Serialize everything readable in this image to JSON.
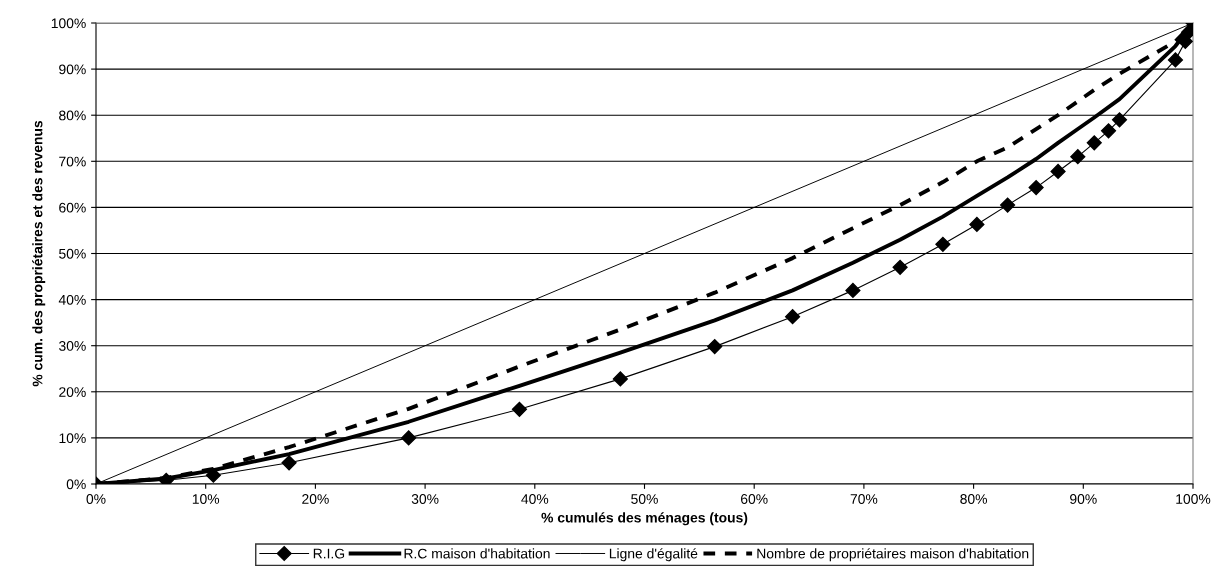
{
  "chart_data": {
    "type": "line",
    "xlabel": "% cumulés des ménages (tous)",
    "ylabel": "% cum. des propriétaires et des revenus",
    "xlim": [
      0,
      100
    ],
    "ylim": [
      0,
      100
    ],
    "xticks": [
      {
        "value": 0,
        "label": "0%"
      },
      {
        "value": 10,
        "label": "10%"
      },
      {
        "value": 20,
        "label": "20%"
      },
      {
        "value": 30,
        "label": "30%"
      },
      {
        "value": 40,
        "label": "40%"
      },
      {
        "value": 50,
        "label": "50%"
      },
      {
        "value": 60,
        "label": "60%"
      },
      {
        "value": 70,
        "label": "70%"
      },
      {
        "value": 80,
        "label": "80%"
      },
      {
        "value": 90,
        "label": "90%"
      },
      {
        "value": 100,
        "label": "100%"
      }
    ],
    "yticks": [
      {
        "value": 0,
        "label": "0%"
      },
      {
        "value": 10,
        "label": "10%"
      },
      {
        "value": 20,
        "label": "20%"
      },
      {
        "value": 30,
        "label": "30%"
      },
      {
        "value": 40,
        "label": "40%"
      },
      {
        "value": 50,
        "label": "50%"
      },
      {
        "value": 60,
        "label": "60%"
      },
      {
        "value": 70,
        "label": "70%"
      },
      {
        "value": 80,
        "label": "80%"
      },
      {
        "value": 90,
        "label": "90%"
      },
      {
        "value": 100,
        "label": "100%"
      }
    ],
    "grid": "y",
    "legend": "bottom",
    "series": [
      {
        "name": "R.I.G",
        "color": "#000000",
        "marker": "diamond",
        "line_style": "solid",
        "x": [
          0,
          6.4,
          10.7,
          17.6,
          28.5,
          38.6,
          47.8,
          56.4,
          63.5,
          69,
          73.3,
          77.2,
          80.3,
          83.1,
          85.7,
          87.7,
          89.5,
          91,
          92.3,
          93.3,
          98.4,
          99.3,
          99.6,
          100
        ],
        "values": [
          0,
          0.8,
          1.9,
          4.6,
          10,
          16.2,
          22.8,
          29.8,
          36.3,
          42,
          47,
          52,
          56.3,
          60.5,
          64.3,
          67.8,
          71,
          74,
          76.6,
          79,
          92,
          96,
          98,
          100
        ]
      },
      {
        "name": "R.C maison d'habitation",
        "color": "#000000",
        "marker": "none",
        "line_style": "solid",
        "x": [
          0,
          6.4,
          10.7,
          17.6,
          28.5,
          38.6,
          47.8,
          56.4,
          63.5,
          69,
          73.3,
          77.2,
          80.3,
          83.1,
          85.7,
          87.7,
          89.5,
          91,
          93.3,
          98.4,
          100
        ],
        "values": [
          0,
          1.2,
          3,
          6.5,
          13.5,
          21.3,
          28.5,
          35.5,
          42,
          48,
          53,
          58,
          62.5,
          66.5,
          70.5,
          74,
          77,
          79.5,
          83.5,
          95,
          100
        ]
      },
      {
        "name": "Ligne d'égalité",
        "color": "#000000",
        "marker": "none",
        "line_style": "solid",
        "x": [
          0,
          100
        ],
        "values": [
          0,
          100
        ]
      },
      {
        "name": "Nombre de propriétaires maison d'habitation",
        "color": "#000000",
        "marker": "none",
        "line_style": "dashed",
        "x": [
          0,
          6.4,
          10.7,
          17.6,
          28.5,
          38.6,
          47.8,
          56.4,
          63.5,
          69,
          73.3,
          77.2,
          80.3,
          83.1,
          85.7,
          87.7,
          89.5,
          91,
          93.3,
          98.4,
          100
        ],
        "values": [
          0,
          1.3,
          3.3,
          8,
          16.3,
          25.5,
          33.5,
          41.5,
          49,
          55.5,
          60.5,
          65.5,
          70,
          73,
          77,
          80,
          83,
          85.5,
          89,
          96,
          100
        ]
      }
    ]
  }
}
